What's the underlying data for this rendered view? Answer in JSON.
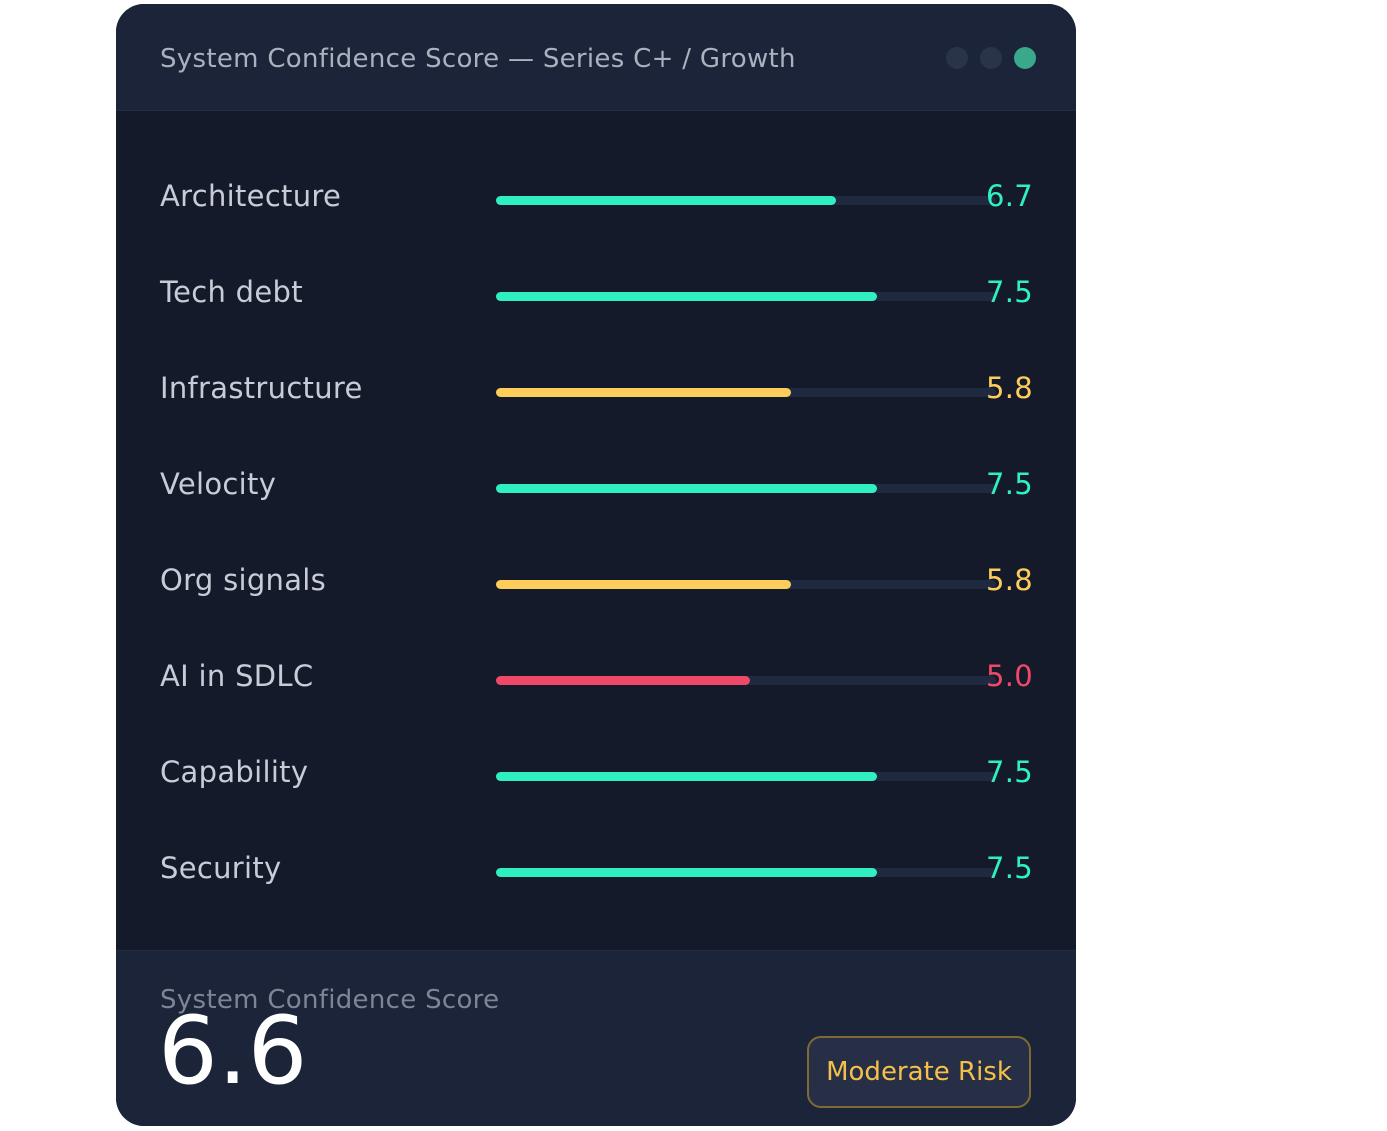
{
  "window": {
    "title": "System Confidence Score — Series C+ / Growth",
    "controls": [
      {
        "name": "window-dot-1",
        "color": "#2a3449"
      },
      {
        "name": "window-dot-2",
        "color": "#2a3449"
      },
      {
        "name": "window-dot-3",
        "color": "#3aa88a"
      }
    ]
  },
  "colors": {
    "good": "#2ff0c0",
    "warn": "#fccd5a",
    "bad": "#f04868",
    "track": "#1f2940"
  },
  "scale_max": 10,
  "metrics": [
    {
      "label": "Architecture",
      "value": "6.7",
      "score": 6.7,
      "status": "good"
    },
    {
      "label": "Tech debt",
      "value": "7.5",
      "score": 7.5,
      "status": "good"
    },
    {
      "label": "Infrastructure",
      "value": "5.8",
      "score": 5.8,
      "status": "warn"
    },
    {
      "label": "Velocity",
      "value": "7.5",
      "score": 7.5,
      "status": "good"
    },
    {
      "label": "Org signals",
      "value": "5.8",
      "score": 5.8,
      "status": "warn"
    },
    {
      "label": "AI in SDLC",
      "value": "5.0",
      "score": 5.0,
      "status": "bad"
    },
    {
      "label": "Capability",
      "value": "7.5",
      "score": 7.5,
      "status": "good"
    },
    {
      "label": "Security",
      "value": "7.5",
      "score": 7.5,
      "status": "good"
    }
  ],
  "summary": {
    "label": "System Confidence Score",
    "value": "6.6",
    "risk_label": "Moderate Risk"
  }
}
